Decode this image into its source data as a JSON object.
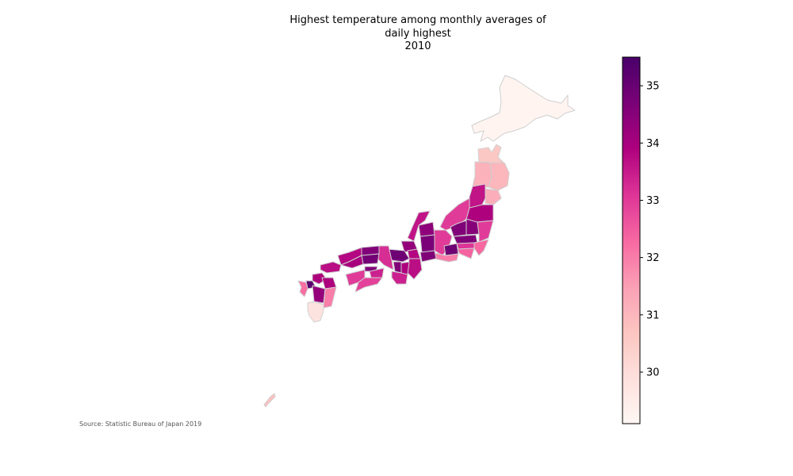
{
  "title": {
    "line1": "Highest temperature among monthly averages of",
    "line2": "daily highest",
    "line3": "2010"
  },
  "source": "Source: Statistic Bureau of Japan 2019",
  "colorbar": {
    "min": 29.1,
    "max": 35.5,
    "ticks": [
      "30",
      "31",
      "32",
      "33",
      "34",
      "35"
    ],
    "colormap": [
      "#fff7f3",
      "#fde0dd",
      "#fcc5c0",
      "#fa9fb5",
      "#f768a1",
      "#dd3497",
      "#ae017e",
      "#7a0177",
      "#49006a"
    ]
  },
  "map_data": {
    "hokkaido": 29.2,
    "aomori": 30.6,
    "iwate": 31.0,
    "akita": 31.1,
    "miyagi": 31.2,
    "yamagata": 33.6,
    "fukushima": 33.9,
    "niigata": 33.0,
    "tochigi": 34.5,
    "gunma": 34.6,
    "ibaraki": 33.0,
    "saitama": 34.6,
    "chiba": 32.3,
    "tokyo": 33.1,
    "kanagawa": 32.4,
    "toyama": 34.4,
    "ishikawa": 33.6,
    "fukui": 34.3,
    "nagano": 33.0,
    "yamanashi": 34.9,
    "gifu": 34.7,
    "shizuoka": 32.0,
    "aichi": 34.6,
    "shiga": 33.8,
    "kyoto": 34.9,
    "hyogo": 33.2,
    "osaka": 34.6,
    "nara": 33.9,
    "mie": 33.7,
    "wakayama": 33.4,
    "tottori": 34.6,
    "shimane": 33.8,
    "okayama": 34.8,
    "hiroshima": 34.0,
    "yamaguchi": 33.7,
    "tokushima": 33.4,
    "kagawa": 34.6,
    "ehime": 33.0,
    "kochi": 32.9,
    "fukuoka": 33.9,
    "saga": 35.2,
    "nagasaki": 32.2,
    "kumamoto": 34.3,
    "oita": 33.9,
    "miyazaki": 32.0,
    "kagoshima": 29.8,
    "okinawa": 30.8
  }
}
